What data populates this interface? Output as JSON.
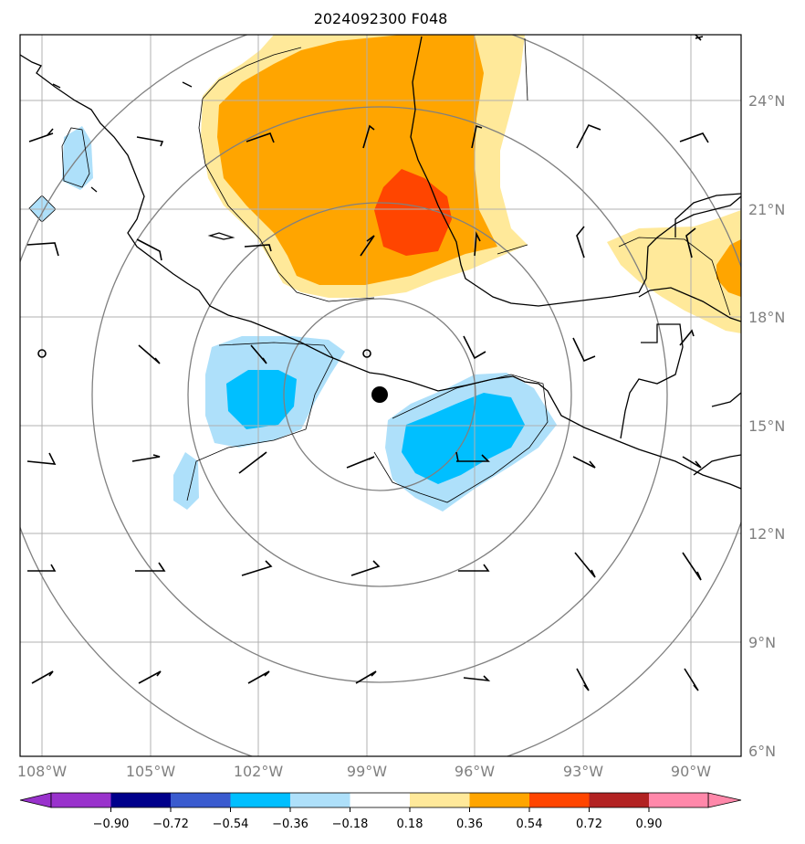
{
  "title": "2024092300 F048",
  "lat_labels": [
    "24°N",
    "21°N",
    "18°N",
    "15°N",
    "12°N",
    "9°N",
    "6°N"
  ],
  "lon_labels": [
    "108°W",
    "105°W",
    "102°W",
    "99°W",
    "96°W",
    "93°W",
    "90°W"
  ],
  "colorbar": {
    "colors": [
      "#9932cc",
      "#00008b",
      "#3a5bcf",
      "#00bfff",
      "#aee0fa",
      "#ffffff",
      "#ffe99a",
      "#ffa500",
      "#ff4500",
      "#b22222",
      "#ff88aa"
    ],
    "tick_labels": [
      "−0.90",
      "−0.72",
      "−0.54",
      "−0.36",
      "−0.18",
      "0.18",
      "0.36",
      "0.54",
      "0.72",
      "0.90"
    ]
  },
  "map": {
    "lat_range": [
      6,
      26
    ],
    "lon_range": [
      -108.6,
      -88.6
    ],
    "storm_center": {
      "lat": 15.8,
      "lon": -98.6
    },
    "range_ring_color": "#808080",
    "gridline_color": "#b0b0b0"
  }
}
